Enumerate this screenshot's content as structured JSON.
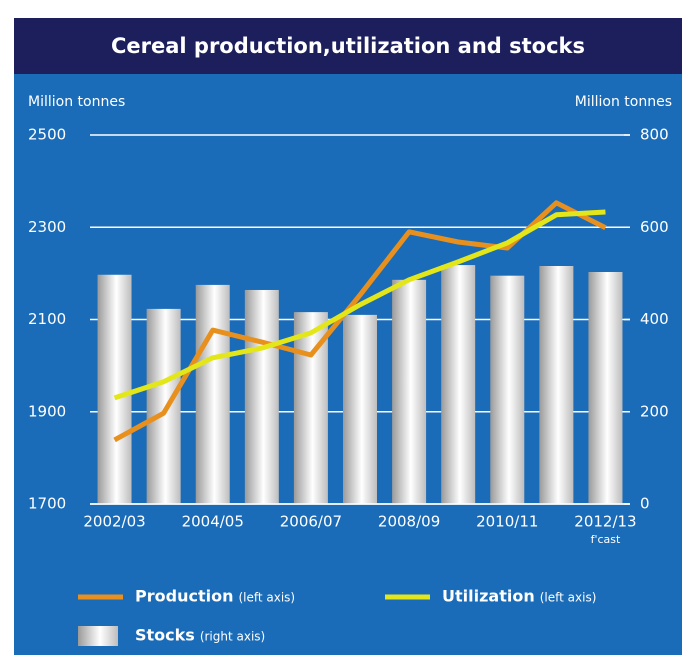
{
  "chart_data": {
    "type": "bar",
    "title": "Cereal production,utilization and stocks",
    "ylabel": "Million tonnes",
    "y2label": "Million tonnes",
    "categories": [
      "2002/03",
      null,
      "2004/05",
      null,
      "2006/07",
      null,
      "2008/09",
      null,
      "2010/11",
      null,
      "2012/13"
    ],
    "annotations": [
      "f'cast"
    ],
    "ylim": [
      1700,
      2500
    ],
    "yticks": [
      1700,
      1900,
      2100,
      2300,
      2500
    ],
    "y2lim": [
      0,
      800
    ],
    "y2ticks": [
      0,
      200,
      400,
      600,
      800
    ],
    "grid": true,
    "series": [
      {
        "name": "Stocks",
        "axis_note": "(right axis)",
        "type": "bar",
        "axis": "y2",
        "color": "#d9d9d9",
        "values": [
          497,
          423,
          475,
          464,
          416,
          410,
          486,
          518,
          495,
          516,
          503
        ]
      },
      {
        "name": "Production",
        "axis_note": "(left axis)",
        "type": "line",
        "color": "#e8901e",
        "values": [
          1839,
          1897,
          2077,
          2051,
          2023,
          2153,
          2290,
          2268,
          2255,
          2353,
          2299
        ]
      },
      {
        "name": "Utilization",
        "axis_note": "(left axis)",
        "type": "line",
        "color": "#e3e619",
        "values": [
          1930,
          1965,
          2017,
          2038,
          2071,
          2132,
          2186,
          2225,
          2266,
          2327,
          2333
        ]
      }
    ]
  }
}
